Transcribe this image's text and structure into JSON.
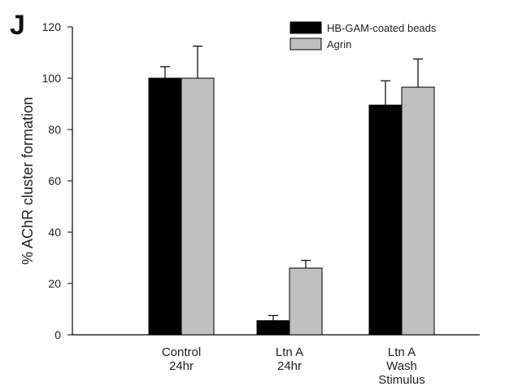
{
  "panel_label": "J",
  "chart_data": {
    "type": "bar",
    "ylabel": "% AChR cluster formation",
    "xlabel": "",
    "ylim": [
      0,
      120
    ],
    "yticks": [
      0,
      20,
      40,
      60,
      80,
      100,
      120
    ],
    "categories": [
      [
        "Control",
        "24hr"
      ],
      [
        "Ltn A",
        "24hr"
      ],
      [
        "Ltn A",
        "Wash",
        "Stimulus"
      ]
    ],
    "series": [
      {
        "name": "HB-GAM-coated beads",
        "color": "#000000",
        "values": [
          100,
          5.5,
          89.5
        ],
        "errors": [
          4.5,
          2,
          9.5
        ]
      },
      {
        "name": "Agrin",
        "color": "#c0c0c0",
        "values": [
          100,
          26,
          96.5
        ],
        "errors": [
          12.5,
          3,
          11
        ]
      }
    ],
    "legend_position": "top-right",
    "grid": false
  }
}
